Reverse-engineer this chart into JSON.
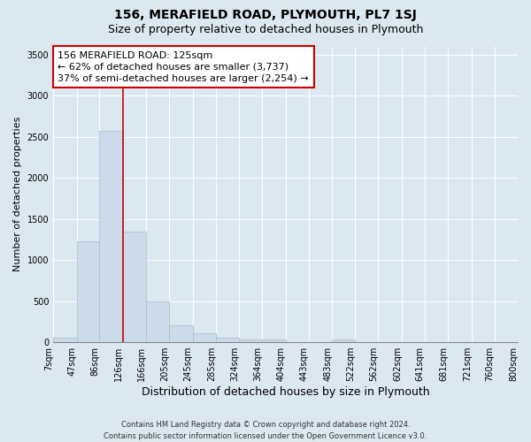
{
  "title": "156, MERAFIELD ROAD, PLYMOUTH, PL7 1SJ",
  "subtitle": "Size of property relative to detached houses in Plymouth",
  "xlabel": "Distribution of detached houses by size in Plymouth",
  "ylabel": "Number of detached properties",
  "all_x_labels": [
    "7sqm",
    "47sqm",
    "86sqm",
    "126sqm",
    "166sqm",
    "205sqm",
    "245sqm",
    "285sqm",
    "324sqm",
    "364sqm",
    "404sqm",
    "443sqm",
    "483sqm",
    "522sqm",
    "562sqm",
    "602sqm",
    "641sqm",
    "681sqm",
    "721sqm",
    "760sqm",
    "800sqm"
  ],
  "bin_edges": [
    7,
    47,
    86,
    126,
    166,
    205,
    245,
    285,
    324,
    364,
    404,
    443,
    483,
    522,
    562,
    602,
    641,
    681,
    721,
    760,
    800
  ],
  "bar_heights": [
    50,
    1230,
    2570,
    1350,
    500,
    200,
    110,
    50,
    30,
    30,
    0,
    0,
    30,
    0,
    0,
    0,
    0,
    0,
    0,
    0
  ],
  "bar_color": "#ccdaea",
  "bar_edge_color": "#aabccc",
  "vline_x": 126,
  "vline_color": "#cc0000",
  "annotation_line1": "156 MERAFIELD ROAD: 125sqm",
  "annotation_line2": "← 62% of detached houses are smaller (3,737)",
  "annotation_line3": "37% of semi-detached houses are larger (2,254) →",
  "annotation_box_color": "#ffffff",
  "annotation_box_edge_color": "#cc0000",
  "ylim": [
    0,
    3600
  ],
  "yticks": [
    0,
    500,
    1000,
    1500,
    2000,
    2500,
    3000,
    3500
  ],
  "background_color": "#dce8f0",
  "plot_background_color": "#dce8f0",
  "footer_line1": "Contains HM Land Registry data © Crown copyright and database right 2024.",
  "footer_line2": "Contains public sector information licensed under the Open Government Licence v3.0.",
  "title_fontsize": 10,
  "subtitle_fontsize": 9,
  "xlabel_fontsize": 9,
  "ylabel_fontsize": 8,
  "annotation_fontsize": 8,
  "tick_fontsize": 7,
  "footer_fontsize": 6
}
